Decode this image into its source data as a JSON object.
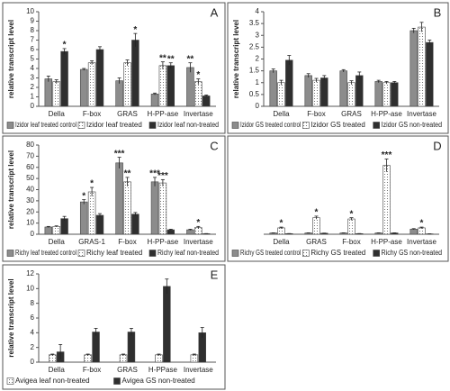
{
  "chart_data": [
    {
      "type": "bar",
      "panel": "A",
      "y_label": "relative transcript level",
      "categories": [
        "Della",
        "F-box",
        "GRAS",
        "H-PP-ase",
        "Invertase"
      ],
      "ylim": [
        0,
        10
      ],
      "yticks": [
        0,
        1,
        2,
        3,
        4,
        5,
        6,
        7,
        8,
        9,
        10
      ],
      "series": [
        {
          "name": "Izidor leaf treated control",
          "color": "#8c8c8c",
          "values": [
            2.9,
            3.9,
            2.7,
            1.3,
            4.1
          ],
          "errors": [
            0.3,
            0.1,
            0.3,
            0.1,
            0.5
          ],
          "significance": [
            null,
            null,
            null,
            null,
            "**"
          ]
        },
        {
          "name": "Izidor leaf treated",
          "color": "#ffffff",
          "hatch": "dots",
          "values": [
            2.6,
            4.6,
            4.6,
            4.3,
            2.6
          ],
          "errors": [
            0.2,
            0.2,
            0.3,
            0.4,
            0.3
          ],
          "significance": [
            null,
            null,
            null,
            "**",
            "*"
          ]
        },
        {
          "name": "Izidor leaf non-treated",
          "color": "#2f2f2f",
          "values": [
            5.8,
            6.0,
            7.0,
            4.3,
            1.1
          ],
          "errors": [
            0.3,
            0.3,
            0.7,
            0.3,
            0.1
          ],
          "significance": [
            "*",
            null,
            "*",
            "**",
            null
          ]
        }
      ]
    },
    {
      "type": "bar",
      "panel": "B",
      "y_label": "relative transcript level",
      "categories": [
        "Della",
        "F-box",
        "GRAS",
        "H-PP-ase",
        "Invertase"
      ],
      "ylim": [
        0,
        4
      ],
      "yticks": [
        0,
        0.5,
        1,
        1.5,
        2,
        2.5,
        3,
        3.5,
        4
      ],
      "series": [
        {
          "name": "Izidor GS treated control",
          "color": "#8c8c8c",
          "values": [
            1.5,
            1.3,
            1.5,
            1.05,
            3.2
          ],
          "errors": [
            0.08,
            0.08,
            0.05,
            0.05,
            0.1
          ],
          "significance": [
            null,
            null,
            null,
            null,
            null
          ]
        },
        {
          "name": "Izidor GS treated",
          "color": "#ffffff",
          "hatch": "dots",
          "values": [
            1.0,
            1.1,
            1.0,
            1.0,
            3.35
          ],
          "errors": [
            0.1,
            0.08,
            0.08,
            0.05,
            0.2
          ],
          "significance": [
            null,
            null,
            null,
            null,
            null
          ]
        },
        {
          "name": "Izidor GS non-treated",
          "color": "#2f2f2f",
          "values": [
            1.95,
            1.2,
            1.3,
            1.0,
            2.7
          ],
          "errors": [
            0.2,
            0.1,
            0.15,
            0.05,
            0.1
          ],
          "significance": [
            null,
            null,
            null,
            null,
            null
          ]
        }
      ]
    },
    {
      "type": "bar",
      "panel": "C",
      "y_label": "relative transcript level",
      "categories": [
        "Della",
        "GRAS-1",
        "F-box",
        "H-PP-ase",
        "Invertase"
      ],
      "ylim": [
        0,
        80
      ],
      "yticks": [
        0,
        10,
        20,
        30,
        40,
        50,
        60,
        70,
        80
      ],
      "series": [
        {
          "name": "Richy leaf treated control",
          "color": "#8c8c8c",
          "values": [
            6.5,
            29,
            64,
            47,
            4
          ],
          "errors": [
            0.5,
            2,
            5,
            4,
            0.5
          ],
          "significance": [
            null,
            "*",
            "***",
            "***",
            null
          ]
        },
        {
          "name": "Richy leaf treated",
          "color": "#ffffff",
          "hatch": "dots",
          "values": [
            7,
            38,
            47,
            46,
            6
          ],
          "errors": [
            0.5,
            4,
            4,
            3,
            1
          ],
          "significance": [
            null,
            "*",
            "**",
            "***",
            "*"
          ]
        },
        {
          "name": "Richy leaf non-treated",
          "color": "#2f2f2f",
          "values": [
            14,
            17,
            18,
            4,
            0.5
          ],
          "errors": [
            2,
            1.5,
            1.5,
            0.5,
            0.1
          ],
          "significance": [
            null,
            null,
            null,
            null,
            null
          ]
        }
      ]
    },
    {
      "type": "bar",
      "panel": "D",
      "categories": [
        "Della",
        "GRAS",
        "F-box",
        "H-PP-ase",
        "Invertase"
      ],
      "ylim": [
        0,
        70
      ],
      "series": [
        {
          "name": "Richy GS treated control",
          "color": "#8c8c8c",
          "values": [
            1,
            1,
            1,
            1,
            4
          ],
          "errors": [
            0.1,
            0.1,
            0.1,
            0.1,
            0.4
          ],
          "significance": [
            null,
            null,
            null,
            null,
            null
          ]
        },
        {
          "name": "Richy GS treated",
          "color": "#ffffff",
          "hatch": "dots",
          "values": [
            5,
            13,
            12,
            54,
            5
          ],
          "errors": [
            0.6,
            1.2,
            1,
            5,
            0.6
          ],
          "significance": [
            "*",
            "*",
            "*",
            "***",
            "*"
          ]
        },
        {
          "name": "Richy GS non-treated",
          "color": "#2f2f2f",
          "values": [
            0.5,
            0.8,
            0.5,
            1,
            0.3
          ],
          "errors": [
            0.05,
            0.1,
            0.05,
            0.1,
            0.05
          ],
          "significance": [
            null,
            null,
            null,
            null,
            null
          ]
        }
      ]
    },
    {
      "type": "bar",
      "panel": "E",
      "y_label": "relative transcript level",
      "categories": [
        "Della",
        "F-box",
        "GRAS",
        "H-PPase",
        "Invertase"
      ],
      "ylim": [
        0,
        12
      ],
      "yticks": [
        0,
        2,
        4,
        6,
        8,
        10,
        12
      ],
      "series": [
        {
          "name": "Avigea leaf non-treated",
          "color": "#ffffff",
          "hatch": "dots",
          "values": [
            1,
            1,
            1,
            1,
            1
          ],
          "errors": [
            0.1,
            0.1,
            0.1,
            0.1,
            0.1
          ],
          "significance": [
            null,
            null,
            null,
            null,
            null
          ]
        },
        {
          "name": "Avigea GS non-treated",
          "color": "#2f2f2f",
          "values": [
            1.4,
            4.1,
            4.1,
            10.3,
            4.0
          ],
          "errors": [
            1.0,
            0.5,
            0.5,
            1.0,
            0.7
          ],
          "significance": [
            null,
            null,
            null,
            null,
            null
          ]
        }
      ]
    }
  ]
}
